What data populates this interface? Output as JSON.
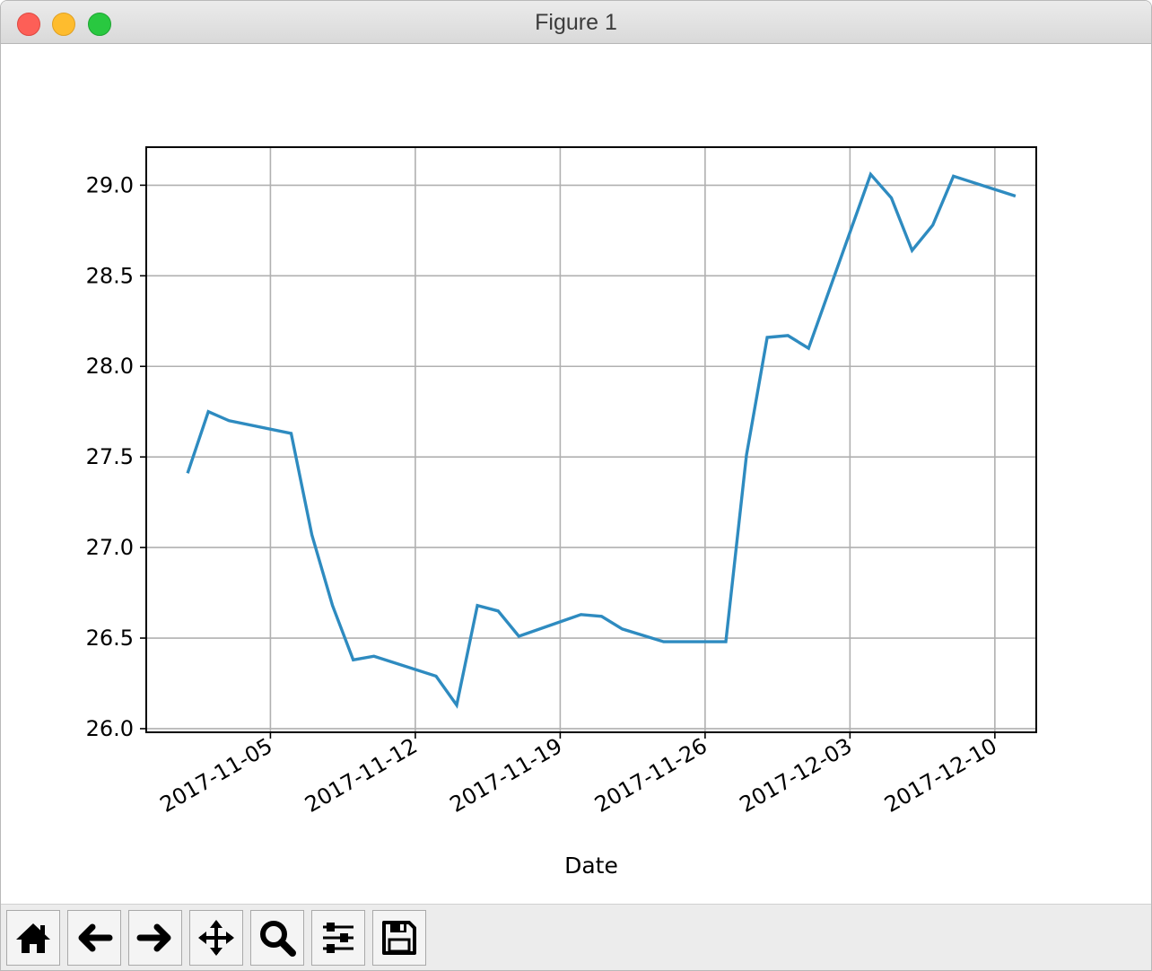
{
  "window": {
    "title": "Figure 1"
  },
  "toolbar": {
    "buttons": [
      {
        "name": "home-button",
        "icon": "home-icon"
      },
      {
        "name": "back-button",
        "icon": "arrow-left-icon"
      },
      {
        "name": "forward-button",
        "icon": "arrow-right-icon"
      },
      {
        "name": "pan-button",
        "icon": "move-icon"
      },
      {
        "name": "zoom-button",
        "icon": "magnifier-icon"
      },
      {
        "name": "configure-subplots-button",
        "icon": "sliders-icon"
      },
      {
        "name": "save-button",
        "icon": "floppy-disk-icon"
      }
    ]
  },
  "chart_data": {
    "type": "line",
    "title": "",
    "xlabel": "Date",
    "ylabel": "",
    "grid": true,
    "line_color": "#2e8bc0",
    "ylim": [
      25.98,
      29.21
    ],
    "xlim": [
      "2017-10-30",
      "2017-12-12"
    ],
    "x_ticks": [
      "2017-11-05",
      "2017-11-12",
      "2017-11-19",
      "2017-11-26",
      "2017-12-03",
      "2017-12-10"
    ],
    "y_ticks": [
      "26.0",
      "26.5",
      "27.0",
      "27.5",
      "28.0",
      "28.5",
      "29.0"
    ],
    "series": [
      {
        "x": [
          "2017-11-01",
          "2017-11-02",
          "2017-11-03",
          "2017-11-06",
          "2017-11-07",
          "2017-11-08",
          "2017-11-09",
          "2017-11-10",
          "2017-11-13",
          "2017-11-14",
          "2017-11-15",
          "2017-11-16",
          "2017-11-17",
          "2017-11-20",
          "2017-11-21",
          "2017-11-22",
          "2017-11-24",
          "2017-11-27",
          "2017-11-28",
          "2017-11-29",
          "2017-11-30",
          "2017-12-01",
          "2017-12-04",
          "2017-12-05",
          "2017-12-06",
          "2017-12-07",
          "2017-12-08",
          "2017-12-11"
        ],
        "y": [
          27.41,
          27.75,
          27.7,
          27.63,
          27.07,
          26.68,
          26.38,
          26.4,
          26.29,
          26.13,
          26.68,
          26.65,
          26.51,
          26.63,
          26.62,
          26.55,
          26.48,
          26.48,
          27.51,
          28.16,
          28.17,
          28.1,
          29.06,
          28.93,
          28.64,
          28.78,
          29.05,
          28.94
        ]
      }
    ]
  }
}
